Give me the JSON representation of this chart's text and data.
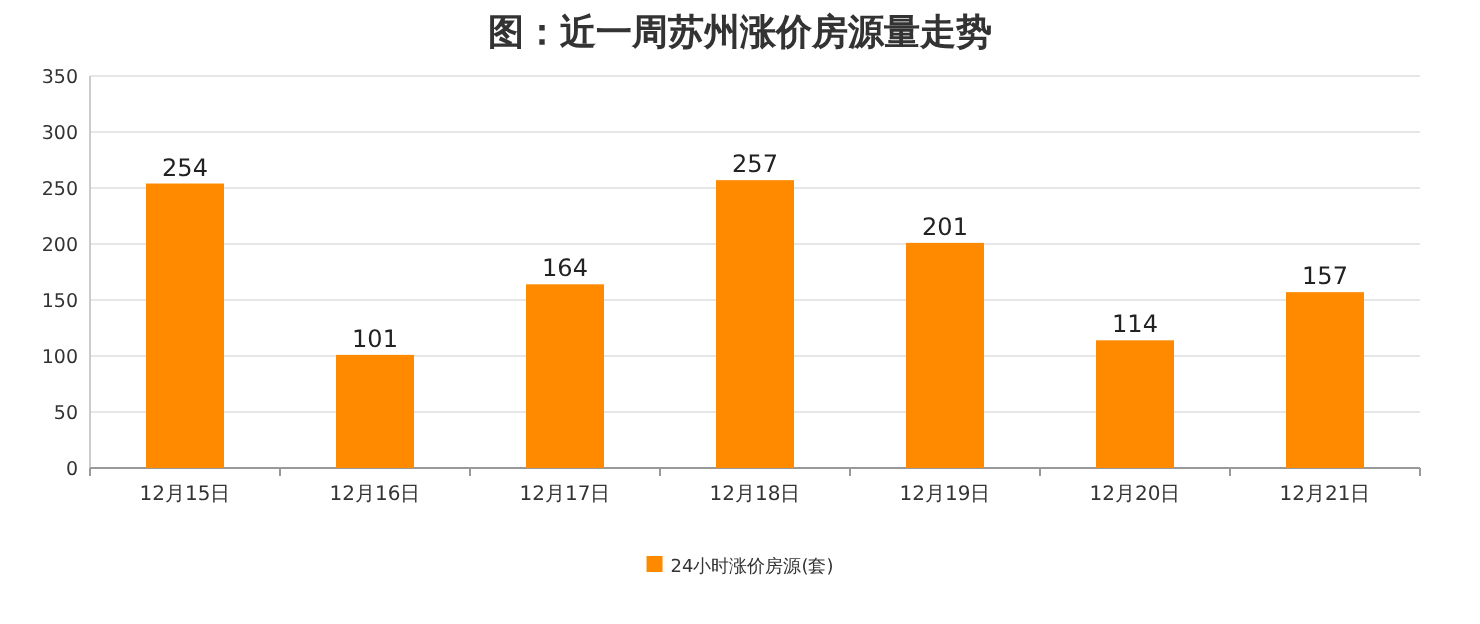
{
  "chart_data": {
    "type": "bar",
    "title": "图：近一周苏州涨价房源量走势",
    "categories": [
      "12月15日",
      "12月16日",
      "12月17日",
      "12月18日",
      "12月19日",
      "12月20日",
      "12月21日"
    ],
    "series": [
      {
        "name": "24小时涨价房源(套)",
        "color": "#ff8a00",
        "values": [
          254,
          101,
          164,
          257,
          201,
          114,
          157
        ]
      }
    ],
    "ylim": [
      0,
      350
    ],
    "yticks": [
      0,
      50,
      100,
      150,
      200,
      250,
      300,
      350
    ],
    "grid": "y",
    "data_labels": true,
    "legend": "bottom"
  }
}
